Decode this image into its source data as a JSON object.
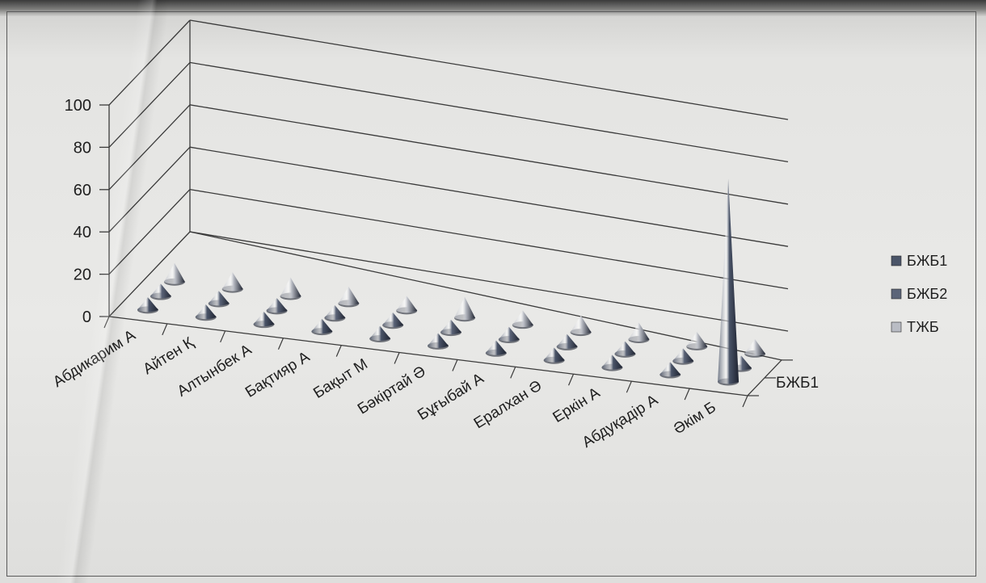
{
  "chart_data": {
    "type": "3d-cone",
    "title": "",
    "xlabel": "",
    "ylabel": "",
    "ylim": [
      0,
      100
    ],
    "y_ticks": [
      "0",
      "20",
      "40",
      "60",
      "80",
      "100"
    ],
    "grid": true,
    "legend_position": "right",
    "categories": [
      "Абдикарим А",
      "Айтен Қ",
      "Алтынбек А",
      "Бақтияр А",
      "Бақыт М",
      "Бәкіртай Ә",
      "Бұғыбай А",
      "Ералхан Ә",
      "Еркін А",
      "Абдуқадір А",
      "Әкім Б"
    ],
    "depth_axis_label": "БЖБ1",
    "series": [
      {
        "name": "БЖБ1",
        "color": "#4a5468",
        "values": [
          6,
          6,
          6,
          6,
          6,
          6,
          6,
          6,
          6,
          6,
          96
        ]
      },
      {
        "name": "БЖБ2",
        "color": "#5b6478",
        "values": [
          6,
          6,
          6,
          6,
          6,
          6,
          6,
          6,
          6,
          6,
          6
        ]
      },
      {
        "name": "ТЖБ",
        "color": "#b9bcc4",
        "values": [
          9,
          8,
          9,
          8,
          7,
          10,
          7,
          8,
          8,
          7,
          7
        ]
      }
    ]
  }
}
